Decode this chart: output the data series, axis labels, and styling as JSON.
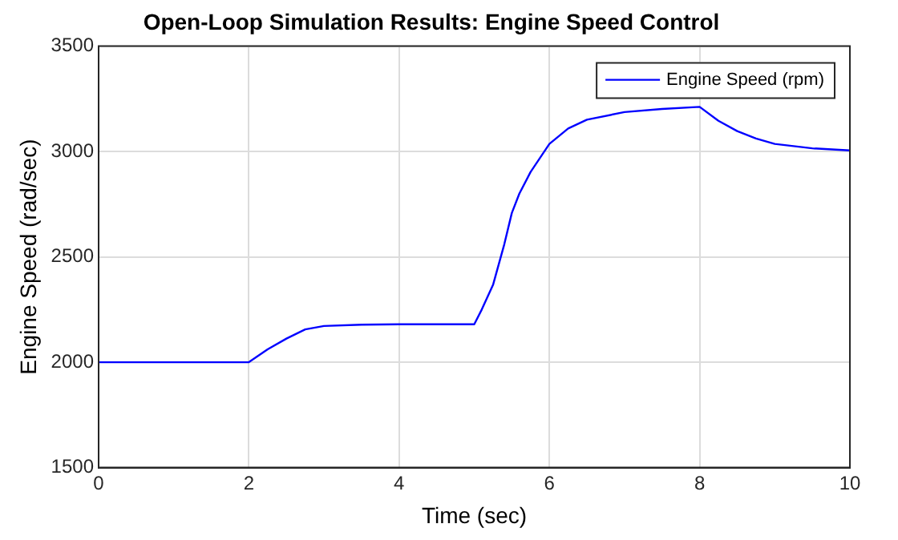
{
  "chart_data": {
    "type": "line",
    "title": "Open-Loop Simulation Results: Engine Speed Control",
    "xlabel": "Time (sec)",
    "ylabel": "Engine Speed (rad/sec)",
    "x": [
      0,
      1,
      2,
      2.25,
      2.5,
      2.75,
      3,
      3.5,
      4,
      4.5,
      5,
      5.1,
      5.25,
      5.4,
      5.5,
      5.6,
      5.75,
      6,
      6.25,
      6.5,
      7,
      7.5,
      8,
      8.25,
      8.5,
      8.75,
      9,
      9.5,
      10
    ],
    "series": [
      {
        "name": "Engine Speed (rpm)",
        "color": "#0000ff",
        "values": [
          2000,
          2000,
          2000,
          2061,
          2112,
          2156,
          2172,
          2178,
          2180,
          2180,
          2180,
          2250,
          2367,
          2560,
          2708,
          2800,
          2903,
          3036,
          3109,
          3151,
          3187,
          3202,
          3212,
          3146,
          3097,
          3062,
          3036,
          3015,
          3005
        ]
      }
    ],
    "xlim": [
      0,
      10
    ],
    "xticks": [
      0,
      2,
      4,
      6,
      8,
      10
    ],
    "ylim": [
      1500,
      3500
    ],
    "yticks": [
      1500,
      2000,
      2500,
      3000,
      3500
    ],
    "grid": true,
    "legend": "top right",
    "marker": "none",
    "line_style": "solid"
  }
}
